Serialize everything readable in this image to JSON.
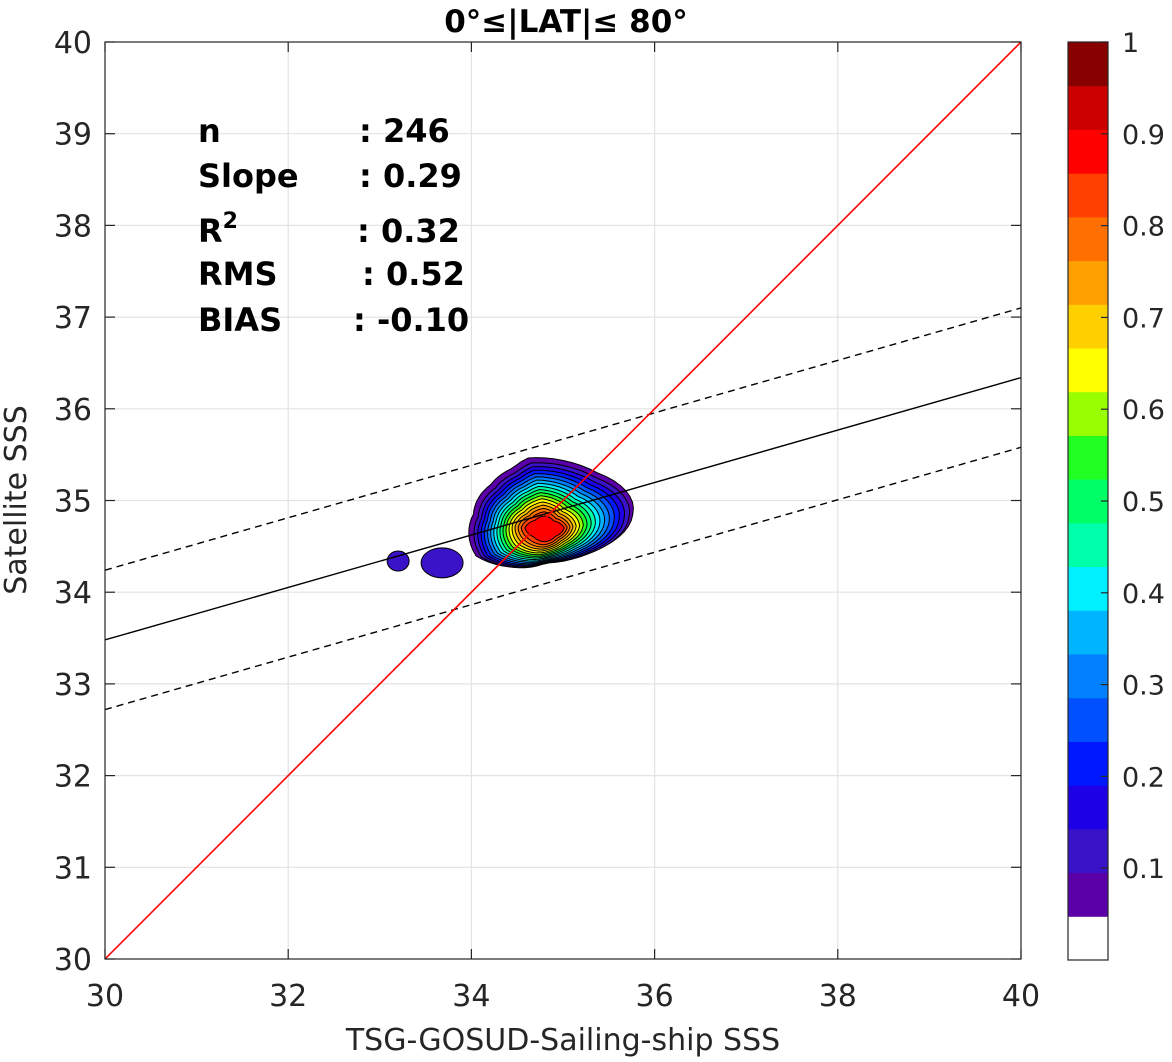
{
  "chart_data": {
    "type": "scatter",
    "title": "0°≤|LAT|≤ 80°",
    "xlabel": "TSG-GOSUD-Sailing-ship SSS",
    "ylabel": "Satellite SSS",
    "xlim": [
      30,
      40
    ],
    "ylim": [
      30,
      40
    ],
    "x_ticks": [
      30,
      32,
      34,
      36,
      38,
      40
    ],
    "y_ticks": [
      30,
      31,
      32,
      33,
      34,
      35,
      36,
      37,
      38,
      39,
      40
    ],
    "grid": true,
    "stats": [
      {
        "label": "n",
        "value": ": 246"
      },
      {
        "label": "Slope",
        "value": ": 0.29"
      },
      {
        "label": "R",
        "sup": "2",
        "value": ": 0.32"
      },
      {
        "label": "RMS",
        "value": ": 0.52"
      },
      {
        "label": "BIAS",
        "value": ": -0.10"
      }
    ],
    "lines": {
      "identity": {
        "from": [
          30,
          30
        ],
        "to": [
          40,
          40
        ],
        "color": "#ff0000"
      },
      "regression": {
        "from": [
          30,
          33.48
        ],
        "to": [
          40,
          36.34
        ],
        "color": "#000000"
      },
      "upper_bound": {
        "from": [
          30,
          34.24
        ],
        "to": [
          40,
          37.1
        ],
        "color": "#000000",
        "dash": true
      },
      "lower_bound": {
        "from": [
          30,
          32.72
        ],
        "to": [
          40,
          35.58
        ],
        "color": "#000000",
        "dash": true
      }
    },
    "density_peak": {
      "x": 34.8,
      "y": 34.7
    },
    "colorbar": {
      "ticks": [
        0.1,
        0.2,
        0.3,
        0.4,
        0.5,
        0.6,
        0.7,
        0.8,
        0.9,
        1
      ],
      "range": [
        0,
        1
      ],
      "colors": [
        "#ffffff",
        "#5b00a8",
        "#3a12c8",
        "#1e00e6",
        "#0018ff",
        "#0050ff",
        "#0080ff",
        "#00b4ff",
        "#00f0ff",
        "#00ffaa",
        "#00ff66",
        "#22ff22",
        "#99ff00",
        "#ffff00",
        "#ffd000",
        "#ffa000",
        "#ff7000",
        "#ff4000",
        "#ff0000",
        "#cc0000",
        "#880000"
      ]
    }
  }
}
